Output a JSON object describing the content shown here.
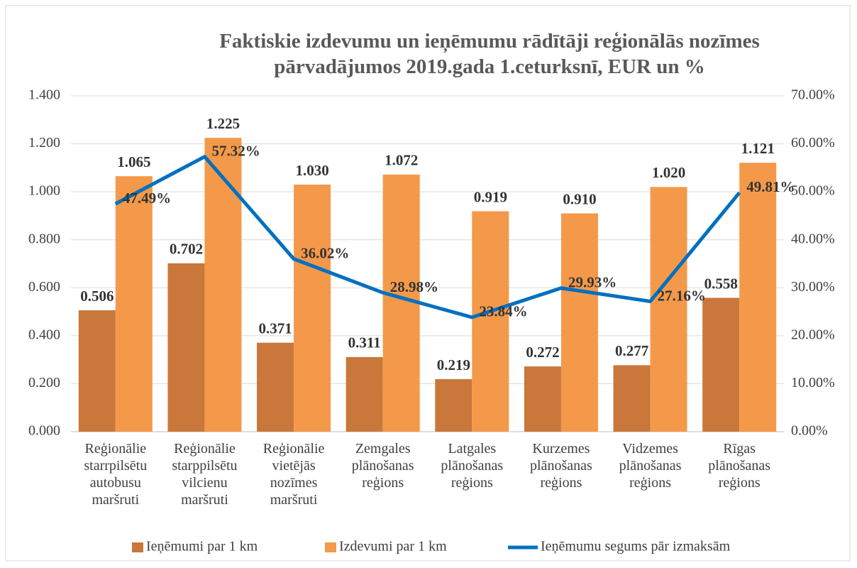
{
  "chart_data": {
    "type": "bar",
    "title": "Faktiskie izdevumu un ieņēmumu rādītāji reģionālās nozīmes pārvadājumos 2019.gada 1.ceturksnī, EUR un %",
    "categories": [
      "Reģionālie starrpilsētu autobusu maršruti",
      "Reģionālie starppilsētu vilcienu maršruti",
      "Reģionālie vietējās nozīmes maršruti",
      "Zemgales plānošanas reģions",
      "Latgales plānošanas reģions",
      "Kurzemes plānošanas reģions",
      "Vidzemes plānošanas reģions",
      "Rīgas plānošanas reģions"
    ],
    "series": [
      {
        "name": "Ieņēmumi par 1 km",
        "color": "#c9773a",
        "values": [
          0.506,
          0.702,
          0.371,
          0.311,
          0.219,
          0.272,
          0.277,
          0.558
        ],
        "value_labels": [
          "0.506",
          "0.702",
          "0.371",
          "0.311",
          "0.219",
          "0.272",
          "0.277",
          "0.558"
        ]
      },
      {
        "name": "Izdevumi par 1 km",
        "color": "#f4994a",
        "values": [
          1.065,
          1.225,
          1.03,
          1.072,
          0.919,
          0.91,
          1.02,
          1.121
        ],
        "value_labels": [
          "1.065",
          "1.225",
          "1.030",
          "1.072",
          "0.919",
          "0.910",
          "1.020",
          "1.121"
        ]
      },
      {
        "name": "Ieņēmumu segums pār izmaksām",
        "color": "#0070c0",
        "type": "line",
        "axis": "y2",
        "values": [
          47.49,
          57.32,
          36.02,
          28.98,
          23.84,
          29.93,
          27.16,
          49.81
        ],
        "value_labels": [
          "47.49%",
          "57.32%",
          "36.02%",
          "28.98%",
          "23.84%",
          "29.93%",
          "27.16%",
          "49.81%"
        ]
      }
    ],
    "ylim": [
      0,
      1.4
    ],
    "yticks": [
      {
        "value": 0,
        "label": "0.000"
      },
      {
        "value": 0.2,
        "label": "0.200"
      },
      {
        "value": 0.4,
        "label": "0.400"
      },
      {
        "value": 0.6,
        "label": "0.600"
      },
      {
        "value": 0.8,
        "label": "0.800"
      },
      {
        "value": 1,
        "label": "1.000"
      },
      {
        "value": 1.2,
        "label": "1.200"
      },
      {
        "value": 1.4,
        "label": "1.400"
      }
    ],
    "y2lim": [
      0,
      70
    ],
    "y2ticks": [
      {
        "value": 0,
        "label": "0.00%"
      },
      {
        "value": 10,
        "label": "10.00%"
      },
      {
        "value": 20,
        "label": "20.00%"
      },
      {
        "value": 30,
        "label": "30.00%"
      },
      {
        "value": 40,
        "label": "40.00%"
      },
      {
        "value": 50,
        "label": "50.00%"
      },
      {
        "value": 60,
        "label": "60.00%"
      },
      {
        "value": 70,
        "label": "70.00%"
      }
    ],
    "grid": true,
    "legend": "bottom"
  }
}
